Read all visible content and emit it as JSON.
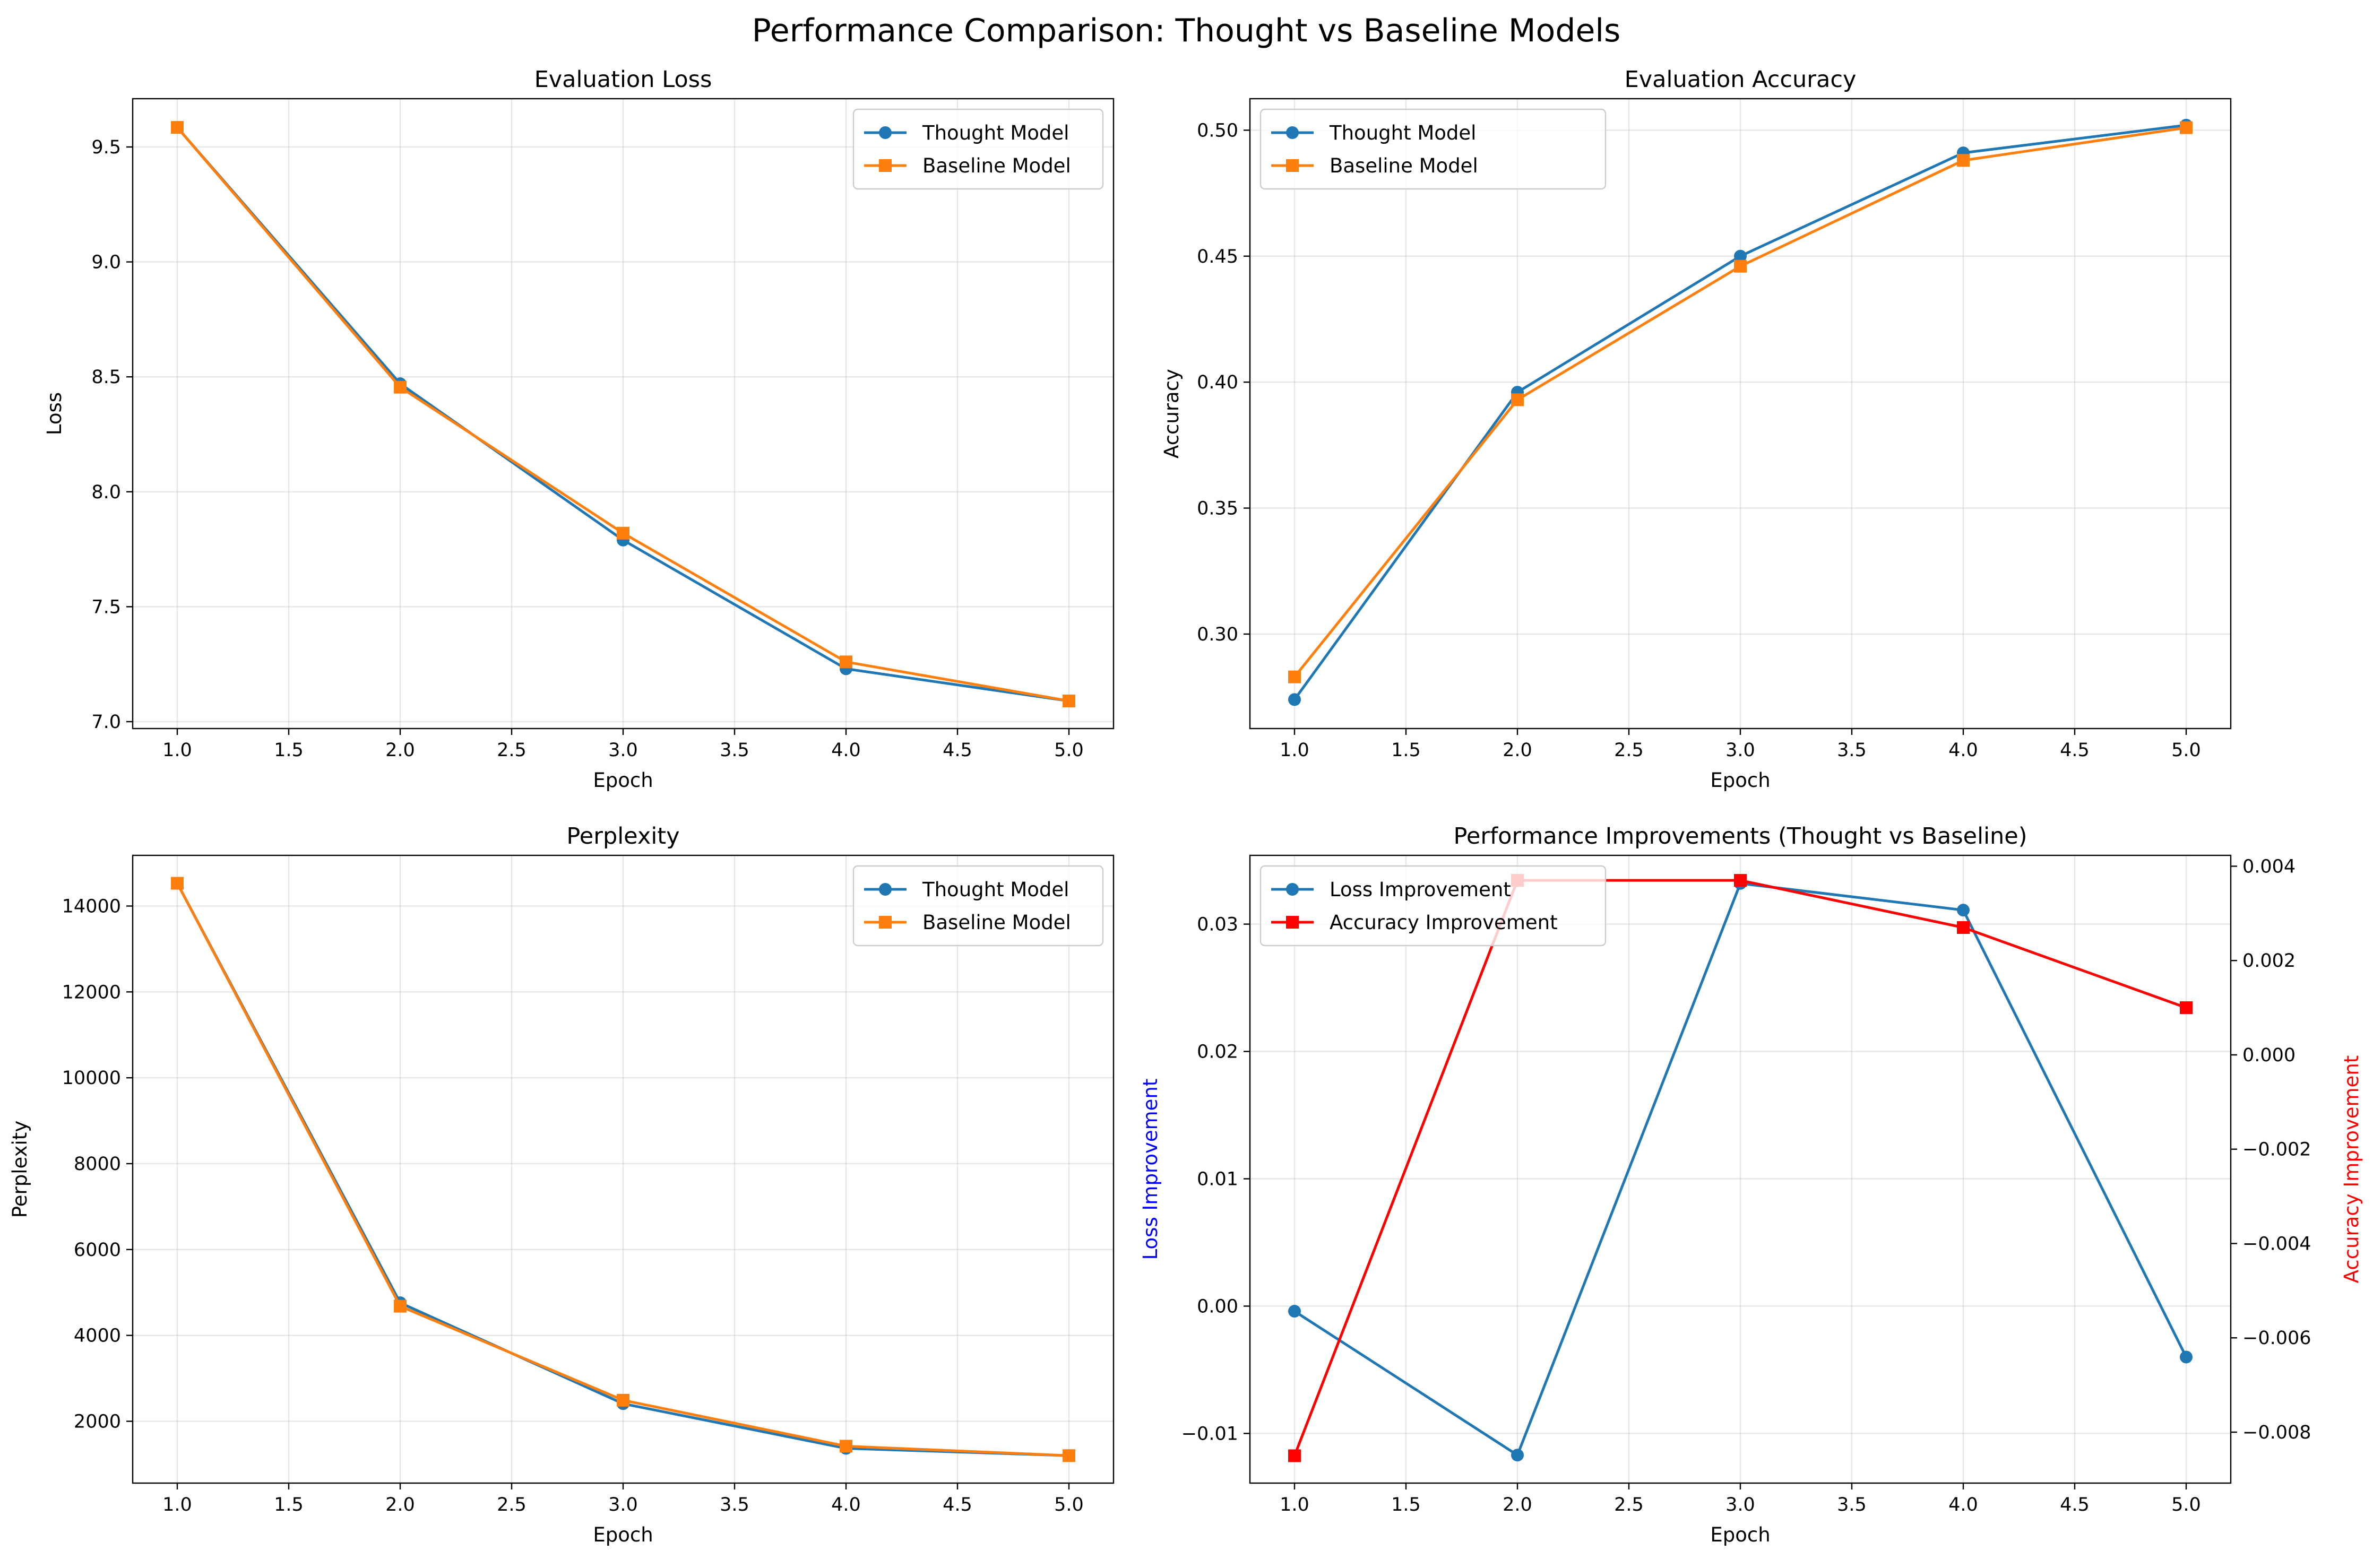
{
  "figure": {
    "title": "Performance Comparison: Thought vs Baseline Models"
  },
  "chart_data": [
    {
      "type": "line",
      "title": "Evaluation Loss",
      "xlabel": "Epoch",
      "ylabel": "Loss",
      "x": [
        1,
        2,
        3,
        4,
        5
      ],
      "xlim": [
        0.8,
        5.2
      ],
      "ylim": [
        6.97,
        9.71
      ],
      "xticks": [
        1.0,
        1.5,
        2.0,
        2.5,
        3.0,
        3.5,
        4.0,
        4.5,
        5.0
      ],
      "yticks": [
        7.0,
        7.5,
        8.0,
        8.5,
        9.0,
        9.5
      ],
      "tick_decimals_x": 1,
      "tick_decimals_y": 1,
      "grid": true,
      "legend_position": "upper-right",
      "series": [
        {
          "name": "Thought Model",
          "values": [
            9.585,
            8.47,
            7.79,
            7.23,
            7.09
          ],
          "color": "#1f77b4",
          "marker": "circle"
        },
        {
          "name": "Baseline Model",
          "values": [
            9.585,
            8.455,
            7.82,
            7.26,
            7.09
          ],
          "color": "#ff7f0e",
          "marker": "square"
        }
      ]
    },
    {
      "type": "line",
      "title": "Evaluation Accuracy",
      "xlabel": "Epoch",
      "ylabel": "Accuracy",
      "x": [
        1,
        2,
        3,
        4,
        5
      ],
      "xlim": [
        0.8,
        5.2
      ],
      "ylim": [
        0.2625,
        0.5125
      ],
      "xticks": [
        1.0,
        1.5,
        2.0,
        2.5,
        3.0,
        3.5,
        4.0,
        4.5,
        5.0
      ],
      "yticks": [
        0.3,
        0.35,
        0.4,
        0.45,
        0.5
      ],
      "tick_decimals_x": 1,
      "tick_decimals_y": 2,
      "grid": true,
      "legend_position": "upper-left",
      "series": [
        {
          "name": "Thought Model",
          "values": [
            0.274,
            0.396,
            0.45,
            0.491,
            0.502
          ],
          "color": "#1f77b4",
          "marker": "circle"
        },
        {
          "name": "Baseline Model",
          "values": [
            0.283,
            0.393,
            0.446,
            0.488,
            0.501
          ],
          "color": "#ff7f0e",
          "marker": "square"
        }
      ]
    },
    {
      "type": "line",
      "title": "Perplexity",
      "xlabel": "Epoch",
      "ylabel": "Perplexity",
      "x": [
        1,
        2,
        3,
        4,
        5
      ],
      "xlim": [
        0.8,
        5.2
      ],
      "ylim": [
        560,
        15180
      ],
      "xticks": [
        1.0,
        1.5,
        2.0,
        2.5,
        3.0,
        3.5,
        4.0,
        4.5,
        5.0
      ],
      "yticks": [
        2000,
        4000,
        6000,
        8000,
        10000,
        12000,
        14000
      ],
      "tick_decimals_x": 1,
      "tick_decimals_y": 0,
      "grid": true,
      "legend_position": "upper-right",
      "series": [
        {
          "name": "Thought Model",
          "values": [
            14530,
            4760,
            2410,
            1370,
            1200
          ],
          "color": "#1f77b4",
          "marker": "circle"
        },
        {
          "name": "Baseline Model",
          "values": [
            14530,
            4680,
            2490,
            1420,
            1200
          ],
          "color": "#ff7f0e",
          "marker": "square"
        }
      ]
    },
    {
      "type": "line",
      "title": "Performance Improvements (Thought vs Baseline)",
      "xlabel": "Epoch",
      "ylabel": "Loss Improvement",
      "ylabel_right": "Accuracy Improvement",
      "ylabel_color": "#0000ff",
      "ylabel_right_color": "#ff0000",
      "x": [
        1,
        2,
        3,
        4,
        5
      ],
      "xlim": [
        0.8,
        5.2
      ],
      "ylim": [
        -0.0139,
        0.0354
      ],
      "ylim_right": [
        -0.00908,
        0.00423
      ],
      "xticks": [
        1.0,
        1.5,
        2.0,
        2.5,
        3.0,
        3.5,
        4.0,
        4.5,
        5.0
      ],
      "yticks": [
        -0.01,
        0.0,
        0.01,
        0.02,
        0.03
      ],
      "yticks_right": [
        -0.008,
        -0.006,
        -0.004,
        -0.002,
        0.0,
        0.002,
        0.004
      ],
      "tick_decimals_x": 1,
      "tick_decimals_y": 2,
      "tick_decimals_y_right": 3,
      "grid": true,
      "legend_position": "upper-left",
      "series": [
        {
          "name": "Loss Improvement",
          "axis": "left",
          "values": [
            -0.0004,
            -0.0117,
            0.0332,
            0.0311,
            -0.004
          ],
          "color": "#1f77b4",
          "marker": "circle"
        },
        {
          "name": "Accuracy Improvement",
          "axis": "right",
          "values": [
            -0.0085,
            0.0037,
            0.0037,
            0.0027,
            0.001
          ],
          "color": "#ff0000",
          "marker": "square"
        }
      ]
    }
  ]
}
